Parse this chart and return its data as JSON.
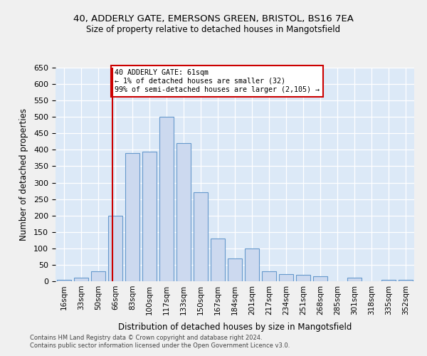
{
  "title_line1": "40, ADDERLY GATE, EMERSONS GREEN, BRISTOL, BS16 7EA",
  "title_line2": "Size of property relative to detached houses in Mangotsfield",
  "xlabel": "Distribution of detached houses by size in Mangotsfield",
  "ylabel": "Number of detached properties",
  "bin_labels": [
    "16sqm",
    "33sqm",
    "50sqm",
    "66sqm",
    "83sqm",
    "100sqm",
    "117sqm",
    "133sqm",
    "150sqm",
    "167sqm",
    "184sqm",
    "201sqm",
    "217sqm",
    "234sqm",
    "251sqm",
    "268sqm",
    "285sqm",
    "301sqm",
    "318sqm",
    "335sqm",
    "352sqm"
  ],
  "bar_values": [
    5,
    10,
    30,
    200,
    390,
    395,
    500,
    420,
    270,
    130,
    70,
    100,
    30,
    22,
    20,
    15,
    0,
    10,
    0,
    5,
    5
  ],
  "bar_color": "#ccd9ef",
  "bar_edge_color": "#6699cc",
  "property_line_x": 2.82,
  "property_line_color": "#cc0000",
  "annotation_text": "40 ADDERLY GATE: 61sqm\n← 1% of detached houses are smaller (32)\n99% of semi-detached houses are larger (2,105) →",
  "annotation_box_facecolor": "#ffffff",
  "annotation_box_edgecolor": "#cc0000",
  "ylim_max": 650,
  "ytick_step": 50,
  "grid_color": "#ffffff",
  "background_color": "#dce9f7",
  "fig_background": "#f0f0f0",
  "footer_line1": "Contains HM Land Registry data © Crown copyright and database right 2024.",
  "footer_line2": "Contains public sector information licensed under the Open Government Licence v3.0."
}
